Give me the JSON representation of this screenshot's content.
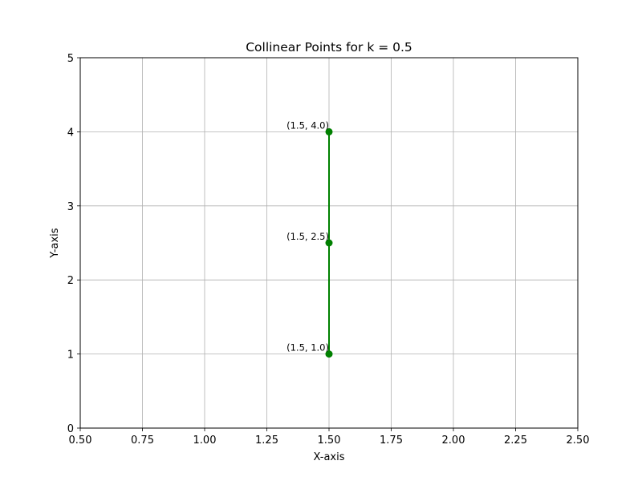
{
  "chart_data": {
    "type": "line",
    "title": "Collinear Points for k = 0.5",
    "xlabel": "X-axis",
    "ylabel": "Y-axis",
    "xlim": [
      0.5,
      2.5
    ],
    "ylim": [
      0,
      5
    ],
    "xticks": [
      "0.50",
      "0.75",
      "1.00",
      "1.25",
      "1.50",
      "1.75",
      "2.00",
      "2.25",
      "2.50"
    ],
    "yticks": [
      "0",
      "1",
      "2",
      "3",
      "4",
      "5"
    ],
    "grid": true,
    "series": [
      {
        "color": "#008000",
        "marker": "circle",
        "points": [
          {
            "x": 1.5,
            "y": 1.0,
            "label": "(1.5, 1.0)"
          },
          {
            "x": 1.5,
            "y": 2.5,
            "label": "(1.5, 2.5)"
          },
          {
            "x": 1.5,
            "y": 4.0,
            "label": "(1.5, 4.0)"
          }
        ]
      }
    ]
  }
}
